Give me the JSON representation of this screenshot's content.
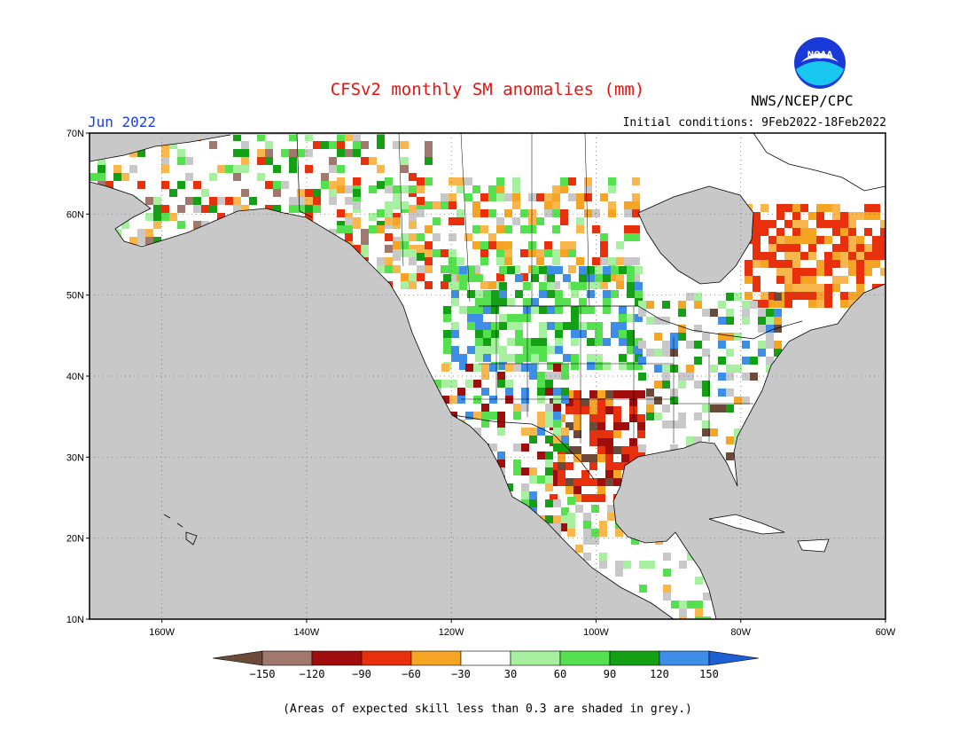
{
  "header": {
    "title": "CFSv2 monthly SM anomalies (mm)",
    "valid_month": "Jun 2022",
    "initial_conditions": "Initial conditions: 9Feb2022-18Feb2022",
    "agency": "NWS/NCEP/CPC",
    "logo_text": "NOAA"
  },
  "map": {
    "region": "North America",
    "lon_range": [
      -170,
      -60
    ],
    "lat_range": [
      10,
      70
    ],
    "lat_labels": [
      "70N",
      "60N",
      "50N",
      "40N",
      "30N",
      "20N",
      "10N"
    ],
    "lon_labels": [
      "160W",
      "140W",
      "120W",
      "100W",
      "80W",
      "60W"
    ],
    "ocean_color": "#c8c8c8",
    "land_color": "#ffffff"
  },
  "legend": {
    "labels": [
      "-150",
      "-120",
      "-90",
      "-60",
      "-30",
      "30",
      "60",
      "90",
      "120",
      "150"
    ],
    "colors": [
      "#6b4a3a",
      "#a0786e",
      "#a00d0d",
      "#e8300c",
      "#f5a523",
      "#f8b64c",
      "#ffffff",
      "#a7f0a0",
      "#55e050",
      "#14a014",
      "#3e8ee8",
      "#1e5fd6"
    ]
  },
  "footnote": "(Areas of expected skill less than 0.3 are shaded in grey.)"
}
